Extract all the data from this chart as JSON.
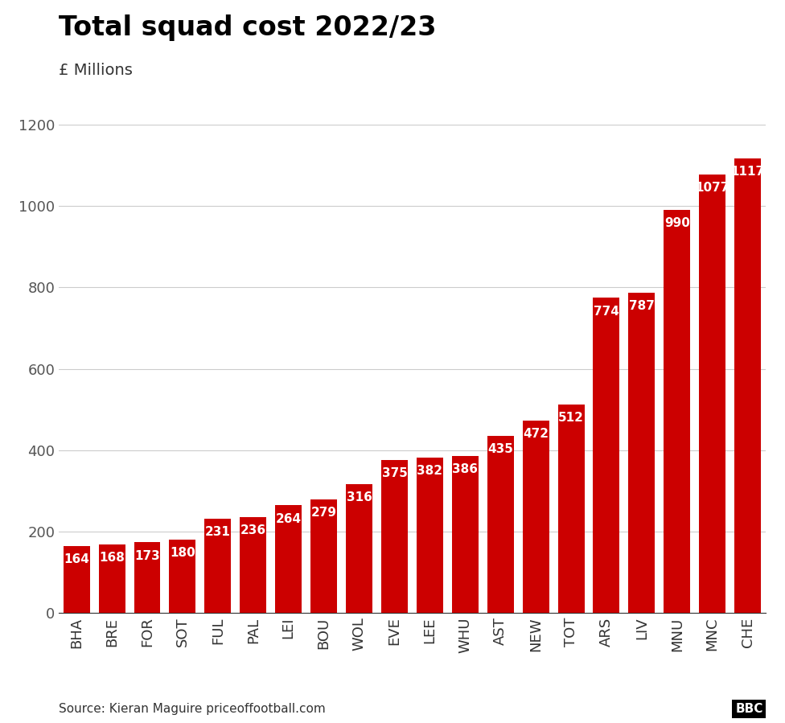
{
  "title": "Total squad cost 2022/23",
  "ylabel": "£ Millions",
  "categories": [
    "BHA",
    "BRE",
    "FOR",
    "SOT",
    "FUL",
    "PAL",
    "LEI",
    "BOU",
    "WOL",
    "EVE",
    "LEE",
    "WHU",
    "AST",
    "NEW",
    "TOT",
    "ARS",
    "LIV",
    "MNU",
    "MNC",
    "CHE"
  ],
  "values": [
    164,
    168,
    173,
    180,
    231,
    236,
    264,
    279,
    316,
    375,
    382,
    386,
    435,
    472,
    512,
    774,
    787,
    990,
    1077,
    1117
  ],
  "bar_color": "#cc0000",
  "ylim": [
    0,
    1200
  ],
  "yticks": [
    0,
    200,
    400,
    600,
    800,
    1000,
    1200
  ],
  "value_label_color": "#ffffff",
  "source_text": "Source: Kieran Maguire priceoffootball.com",
  "background_color": "#ffffff",
  "grid_color": "#cccccc",
  "title_fontsize": 24,
  "ylabel_fontsize": 14,
  "tick_fontsize": 13,
  "value_fontsize": 11
}
